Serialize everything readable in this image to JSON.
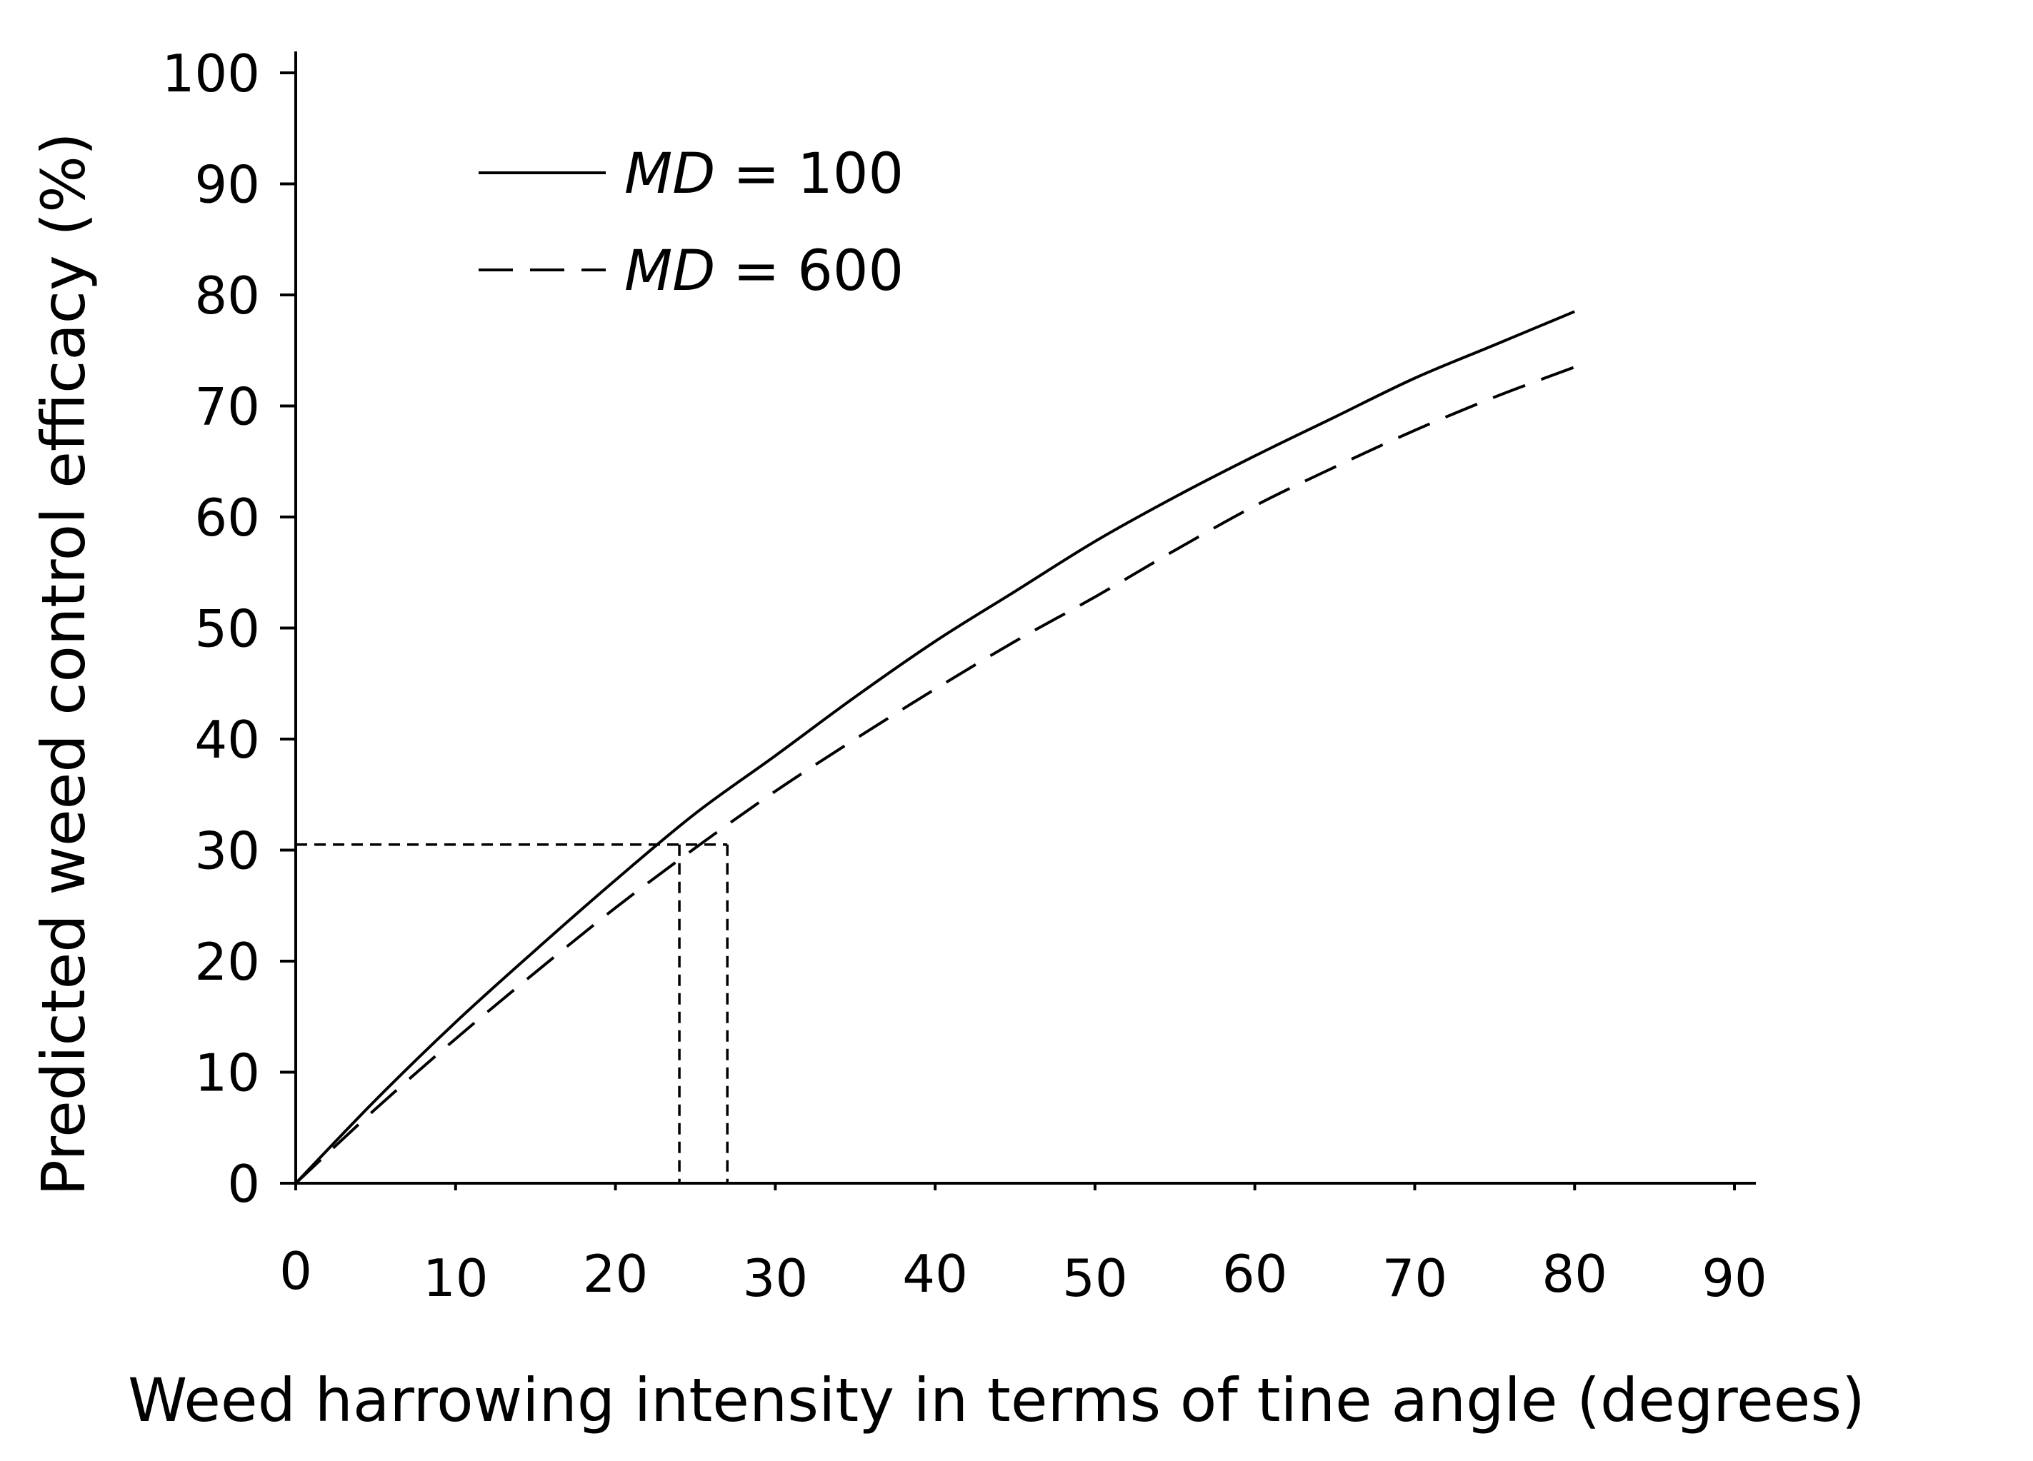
{
  "chart_data": {
    "type": "line",
    "title": "",
    "xlabel": "Weed harrowing intensity in terms of tine angle (degrees)",
    "ylabel": "Predicted weed control efficacy (%)",
    "xlim": [
      0,
      90
    ],
    "ylim": [
      0,
      100
    ],
    "xticks": [
      0,
      10,
      20,
      30,
      40,
      50,
      60,
      70,
      80,
      90
    ],
    "yticks": [
      0,
      10,
      20,
      30,
      40,
      50,
      60,
      70,
      80,
      90,
      100
    ],
    "grid": false,
    "legend_position": "top-left",
    "series": [
      {
        "name": "MD = 100",
        "legend_label_italic": "MD",
        "legend_label_rest": " = 100",
        "style": "solid",
        "x": [
          0,
          5,
          10,
          15,
          20,
          25,
          30,
          35,
          40,
          45,
          50,
          55,
          60,
          65,
          70,
          75,
          80
        ],
        "y": [
          0,
          7.5,
          14.5,
          21.0,
          27.3,
          33.3,
          38.5,
          43.8,
          48.8,
          53.3,
          57.8,
          61.8,
          65.5,
          69.0,
          72.5,
          75.5,
          78.5
        ]
      },
      {
        "name": "MD = 600",
        "legend_label_italic": "MD",
        "legend_label_rest": " = 600",
        "style": "dashed",
        "x": [
          0,
          5,
          10,
          15,
          20,
          25,
          30,
          35,
          40,
          45,
          50,
          55,
          60,
          65,
          70,
          75,
          80
        ],
        "y": [
          0,
          6.7,
          13.0,
          19.0,
          24.8,
          30.2,
          35.3,
          40.0,
          44.5,
          48.8,
          52.8,
          57.0,
          61.0,
          64.5,
          67.8,
          70.8,
          73.5
        ]
      }
    ],
    "annotations": [
      {
        "type": "reference-lines",
        "style": "short-dash",
        "y": 30.5,
        "x_values": [
          24,
          27
        ]
      }
    ]
  }
}
